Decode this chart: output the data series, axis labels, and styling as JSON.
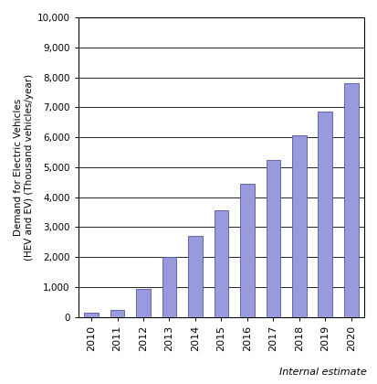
{
  "years": [
    "2010",
    "2011",
    "2012",
    "2013",
    "2014",
    "2015",
    "2016",
    "2017",
    "2018",
    "2019",
    "2020"
  ],
  "values": [
    150,
    250,
    950,
    2000,
    2700,
    3550,
    4450,
    5250,
    6050,
    6850,
    7800
  ],
  "bar_color": "#9999dd",
  "bar_edgecolor": "#555599",
  "ylabel_line1": "Demand for Electric Vehicles",
  "ylabel_line2": "(HEV and EV) (Thousand vehicles/year)",
  "ylim": [
    0,
    10000
  ],
  "yticks": [
    0,
    1000,
    2000,
    3000,
    4000,
    5000,
    6000,
    7000,
    8000,
    9000,
    10000
  ],
  "ytick_labels": [
    "0",
    "1,000",
    "2,000",
    "3,000",
    "4,000",
    "5,000",
    "6,000",
    "7,000",
    "8,000",
    "9,000",
    "10,000"
  ],
  "footnote": "Internal estimate",
  "background_color": "#ffffff",
  "grid_color": "#000000",
  "bar_width": 0.55
}
